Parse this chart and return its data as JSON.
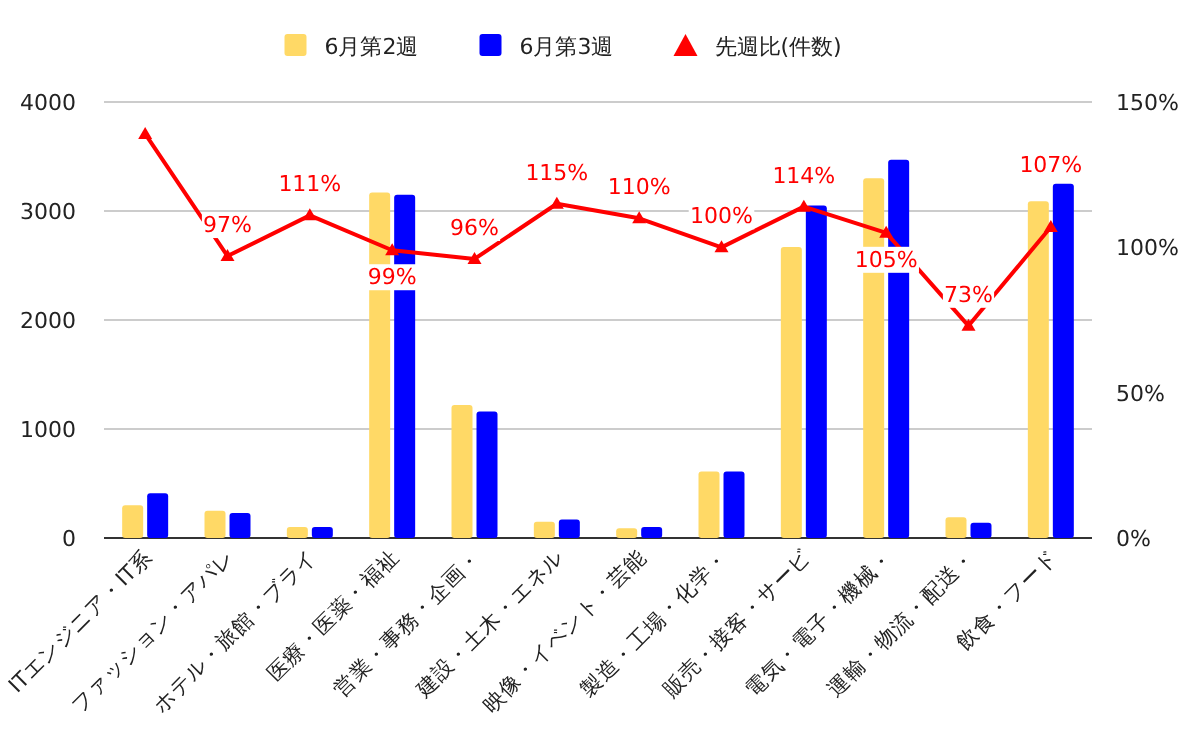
{
  "chart_data": {
    "type": "bar",
    "categories": [
      "ITエンジニア・IT系",
      "ファッション・アパレ",
      "ホテル・旅館・ブライ",
      "医療・医薬・福祉",
      "営業・事務・企画・",
      "建設・土木・エネル",
      "映像・イベント・芸能",
      "製造・工場・化学・",
      "販売・接客・サービ",
      "電気・電子・機械・",
      "運輸・物流・配送・",
      "飲食・フード"
    ],
    "series": [
      {
        "name": "6月第2週",
        "color": "#ffd966",
        "values": [
          300,
          250,
          100,
          3170,
          1220,
          150,
          90,
          610,
          2670,
          3300,
          190,
          3090
        ]
      },
      {
        "name": "6月第3週",
        "color": "#0000ff",
        "values": [
          410,
          230,
          100,
          3150,
          1160,
          170,
          100,
          610,
          3050,
          3470,
          140,
          3250
        ]
      },
      {
        "name": "先週比(件数)",
        "type": "line",
        "axis": "y2",
        "color": "#ff0000",
        "marker": "triangle",
        "values": [
          139,
          97,
          111,
          99,
          96,
          115,
          110,
          100,
          114,
          105,
          73,
          107
        ],
        "value_labels": [
          null,
          "97%",
          "111%",
          "99%",
          "96%",
          "115%",
          "110%",
          "100%",
          "114%",
          "105%",
          "73%",
          "107%"
        ]
      }
    ],
    "ylim": [
      0,
      4000
    ],
    "yticks": [
      0,
      1000,
      2000,
      3000,
      4000
    ],
    "y2lim": [
      0,
      150
    ],
    "y2ticks": [
      {
        "value": 0,
        "label": "0%"
      },
      {
        "value": 50,
        "label": "50%"
      },
      {
        "value": 100,
        "label": "100%"
      },
      {
        "value": 150,
        "label": "150%"
      }
    ],
    "grid": "y",
    "legend": "top"
  }
}
